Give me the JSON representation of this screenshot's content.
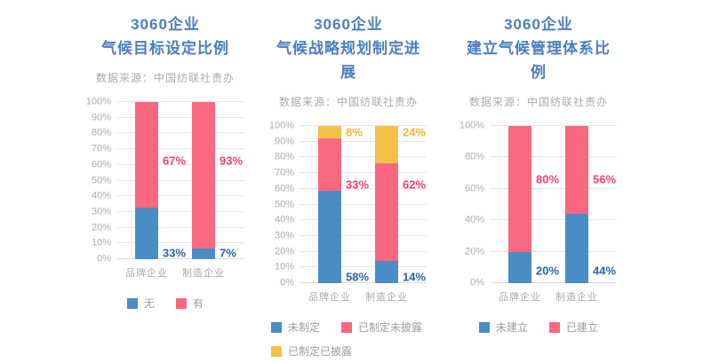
{
  "page": {
    "background": "#ffffff"
  },
  "colors": {
    "title_blue": "#4A7EBD",
    "bar_blue": "#4A8CC4",
    "bar_pink": "#F9687F",
    "bar_yellow": "#F3C14A",
    "label_blue": "#28659F",
    "label_pink": "#F23F6D",
    "label_yellow": "#EFB337",
    "axis_gray": "#ACACAC",
    "legend_gray": "#9B9B9B",
    "gridline": "#E4E4E4"
  },
  "chart_data": [
    {
      "type": "bar",
      "stacked": true,
      "title": "3060企业 气候目标设定比例",
      "title_lines": [
        "3060企业",
        "气候目标设定比例"
      ],
      "subtitle": "数据来源：中国纺联社责办",
      "categories": [
        "品牌企业",
        "制造企业"
      ],
      "series": [
        {
          "name": "无",
          "color": "#4A8CC4",
          "values": [
            33,
            7
          ],
          "label_color": "#28659F",
          "label_y_pct": 4
        },
        {
          "name": "有",
          "color": "#F9687F",
          "values": [
            67,
            93
          ],
          "label_color": "#F23F6D",
          "label_y_pct": 63
        }
      ],
      "ylim": [
        0,
        100
      ],
      "y_tick_step": 10,
      "grid": true,
      "legend_position": "bottom-center"
    },
    {
      "type": "bar",
      "stacked": true,
      "title": "3060企业 气候战略规划制定进展",
      "title_lines": [
        "3060企业",
        "气候战略规划制定进展"
      ],
      "subtitle": "数据来源：中国纺联社责办",
      "categories": [
        "品牌企业",
        "制造企业"
      ],
      "series": [
        {
          "name": "未制定",
          "color": "#4A8CC4",
          "values": [
            58,
            14
          ],
          "label_color": "#28659F",
          "label_y_pct": 4
        },
        {
          "name": "已制定未披露",
          "color": "#F9687F",
          "values": [
            33,
            62
          ],
          "label_color": "#F23F6D",
          "label_y_pct": 63
        },
        {
          "name": "已制定已披露",
          "color": "#F3C14A",
          "values": [
            8,
            24
          ],
          "label_color": "#EFB337",
          "label_y_pct": 96
        }
      ],
      "ylim": [
        0,
        100
      ],
      "y_tick_step": 10,
      "grid": true,
      "legend_position": "bottom-left"
    },
    {
      "type": "bar",
      "stacked": true,
      "title": "3060企业 建立气候管理体系比例",
      "title_lines": [
        "3060企业",
        "建立气候管理体系比例"
      ],
      "subtitle": "数据来源：中国纺联社责办",
      "categories": [
        "品牌企业",
        "制造企业"
      ],
      "series": [
        {
          "name": "未建立",
          "color": "#4A8CC4",
          "values": [
            20,
            44
          ],
          "label_color": "#28659F",
          "label_y_pct": 8
        },
        {
          "name": "已建立",
          "color": "#F9687F",
          "values": [
            80,
            56
          ],
          "label_color": "#F23F6D",
          "label_y_pct": 66
        }
      ],
      "ylim": [
        0,
        100
      ],
      "y_tick_step": 20,
      "grid": true,
      "legend_position": "bottom-center"
    }
  ]
}
